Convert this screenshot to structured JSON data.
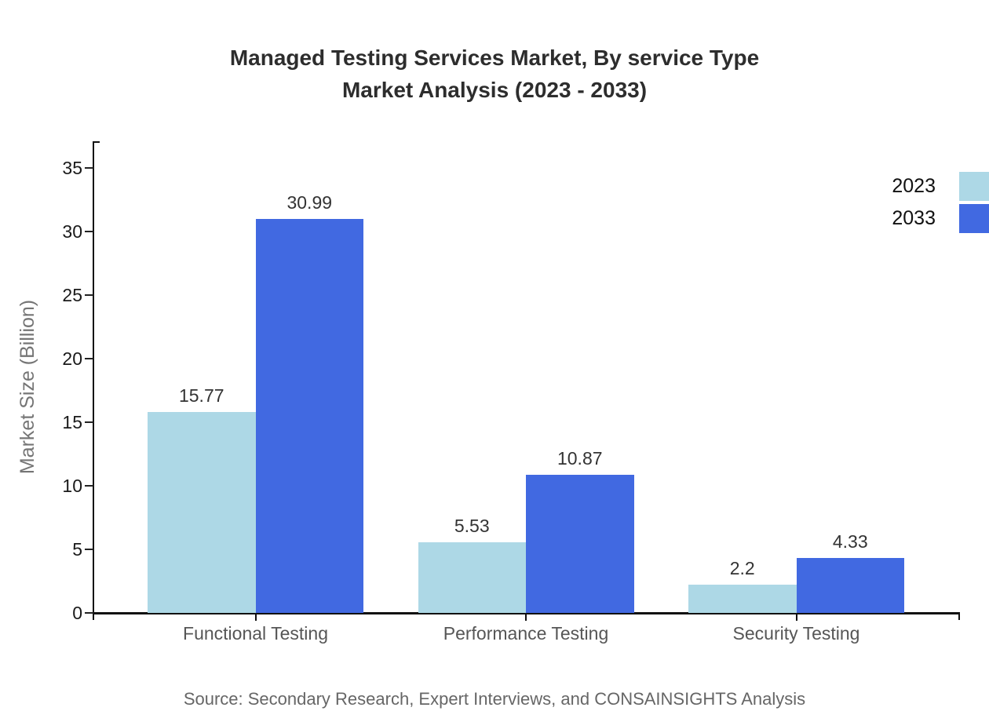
{
  "title": {
    "line1": "Managed Testing Services Market, By service Type",
    "line2": "Market Analysis (2023 - 2033)"
  },
  "source": {
    "text": "Source: Secondary Research, Expert Interviews, and CONSAINSIGHTS Analysis"
  },
  "colors": {
    "series_2023": "#ADD8E6",
    "series_2033": "#4169E1",
    "axis": "#111111",
    "title_text": "#2D2D2D",
    "category_text": "#565656",
    "ylabel_text": "#757575",
    "source_text": "#666666"
  },
  "legend": {
    "items": [
      {
        "label": "2023",
        "color": "#ADD8E6"
      },
      {
        "label": "2033",
        "color": "#4169E1"
      }
    ]
  },
  "chart_data": {
    "type": "bar",
    "title": "Managed Testing Services Market, By service Type Market Analysis (2023 - 2033)",
    "categories": [
      "Functional Testing",
      "Performance Testing",
      "Security Testing"
    ],
    "series": [
      {
        "name": "2023",
        "color": "#ADD8E6",
        "values": [
          15.77,
          5.53,
          2.2
        ],
        "labels": [
          "15.77",
          "5.53",
          "2.2"
        ]
      },
      {
        "name": "2033",
        "color": "#4169E1",
        "values": [
          30.99,
          10.87,
          4.33
        ],
        "labels": [
          "30.99",
          "10.87",
          "4.33"
        ]
      }
    ],
    "xlabel": "",
    "ylabel": "Market Size (Billion)",
    "ylim": [
      0,
      37
    ],
    "yticks": [
      0,
      5,
      10,
      15,
      20,
      25,
      30,
      35
    ],
    "grid": false,
    "legend_position": "top-right",
    "bar_value_labels": true
  }
}
